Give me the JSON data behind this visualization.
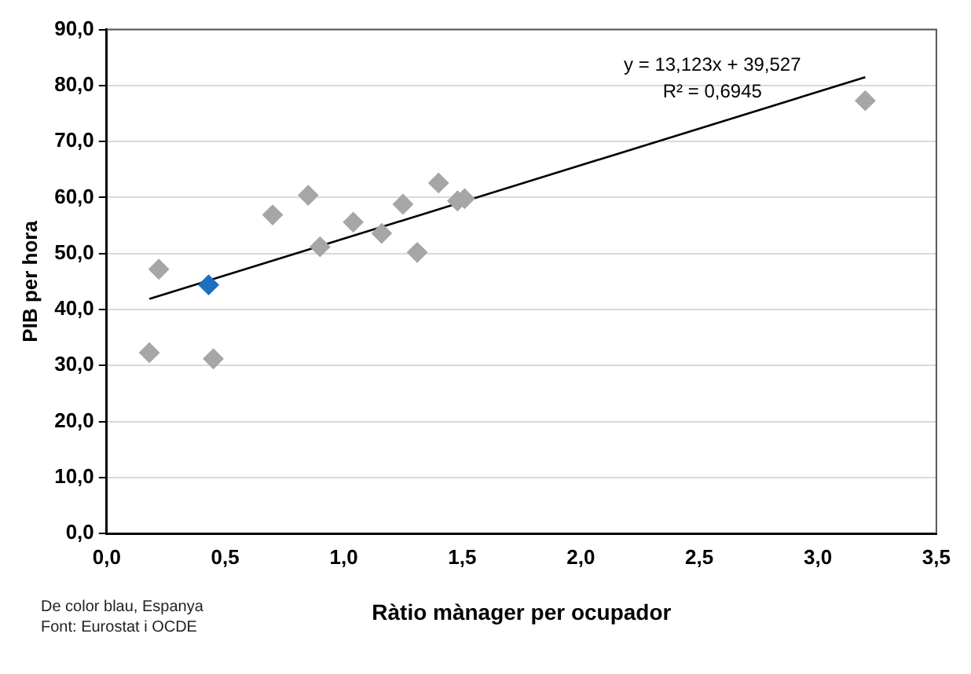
{
  "chart_data": {
    "type": "scatter",
    "xlabel": "Ràtio mànager per ocupador",
    "ylabel": "PIB per hora",
    "xlim": [
      0,
      3.5
    ],
    "ylim": [
      0,
      90
    ],
    "xticks": [
      {
        "value": 0,
        "label": "0,0"
      },
      {
        "value": 0.5,
        "label": "0,5"
      },
      {
        "value": 1,
        "label": "1,0"
      },
      {
        "value": 1.5,
        "label": "1,5"
      },
      {
        "value": 2,
        "label": "2,0"
      },
      {
        "value": 2.5,
        "label": "2,5"
      },
      {
        "value": 3,
        "label": "3,0"
      },
      {
        "value": 3.5,
        "label": "3,5"
      }
    ],
    "yticks": [
      {
        "value": 0,
        "label": "0,0"
      },
      {
        "value": 10,
        "label": "10,0"
      },
      {
        "value": 20,
        "label": "20,0"
      },
      {
        "value": 30,
        "label": "30,0"
      },
      {
        "value": 40,
        "label": "40,0"
      },
      {
        "value": 50,
        "label": "50,0"
      },
      {
        "value": 60,
        "label": "60,0"
      },
      {
        "value": 70,
        "label": "70,0"
      },
      {
        "value": 80,
        "label": "80,0"
      },
      {
        "value": 90,
        "label": "90,0"
      }
    ],
    "grid": "y",
    "marker": "diamond",
    "series": [
      {
        "type": "scatter",
        "color": "#a6a6a6",
        "x": [
          0.18,
          0.22,
          0.45,
          0.7,
          0.85,
          0.9,
          1.04,
          1.16,
          1.25,
          1.31,
          1.4,
          1.48,
          1.51,
          3.2
        ],
        "values": [
          32.3,
          47.2,
          31.2,
          56.9,
          60.4,
          51.2,
          55.6,
          53.6,
          58.8,
          50.2,
          62.6,
          59.4,
          59.8,
          77.3
        ]
      },
      {
        "type": "scatter",
        "color": "#1f6fbf",
        "x": [
          0.43
        ],
        "values": [
          44.4
        ]
      },
      {
        "type": "line",
        "color": "#000000",
        "marker": "none",
        "x": [
          0.18,
          3.2
        ],
        "values": [
          41.9,
          81.5
        ]
      }
    ],
    "annotations": [
      "y = 13,123x + 39,527",
      "R² = 0,6945",
      "De color blau, Espanya",
      "Font: Eurostat i OCDE"
    ]
  }
}
